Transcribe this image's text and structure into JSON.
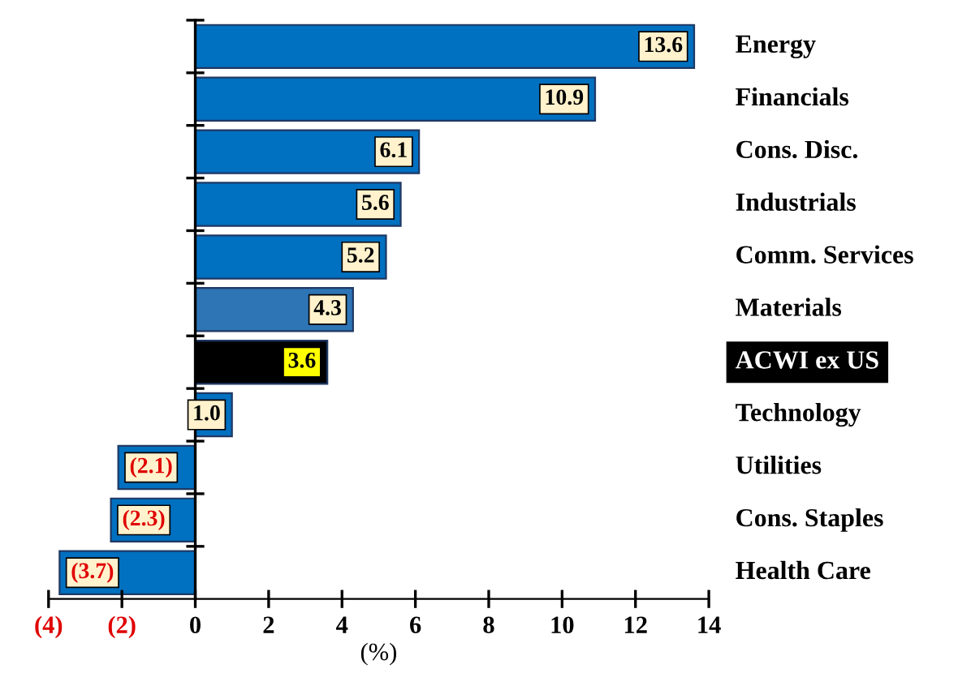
{
  "chart_data": {
    "type": "bar",
    "orientation": "horizontal",
    "xlabel": "(%)",
    "categories": [
      "Energy",
      "Financials",
      "Cons. Disc.",
      "Industrials",
      "Comm. Services",
      "Materials",
      "ACWI ex US",
      "Technology",
      "Utilities",
      "Cons. Staples",
      "Health Care"
    ],
    "values": [
      13.6,
      10.9,
      6.1,
      5.6,
      5.2,
      4.3,
      3.6,
      1.0,
      -2.1,
      -2.3,
      -3.7
    ],
    "colors": [
      "#0070c0",
      "#0070c0",
      "#0070c0",
      "#0070c0",
      "#0070c0",
      "#2e75b6",
      "#000000",
      "#0070c0",
      "#0070c0",
      "#0070c0",
      "#0070c0"
    ],
    "value_labels": [
      "13.6",
      "10.9",
      "6.1",
      "5.6",
      "5.2",
      "4.3",
      "3.6",
      "1.0",
      "(2.1)",
      "(2.3)",
      "(3.7)"
    ],
    "xlim": [
      -4,
      14
    ],
    "legend": false,
    "xticks": [
      {
        "value": -4,
        "label": "(4)"
      },
      {
        "value": -2,
        "label": "(2)"
      },
      0,
      2,
      4,
      6,
      8,
      10,
      12,
      14
    ]
  }
}
